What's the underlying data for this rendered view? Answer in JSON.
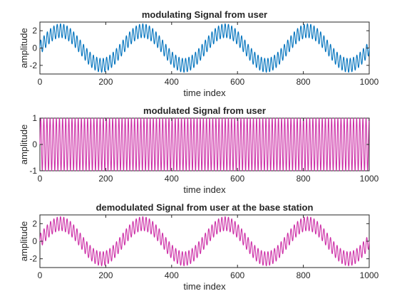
{
  "chart_data": [
    {
      "type": "line",
      "title": "modulating Signal from user",
      "xlabel": "time index",
      "ylabel": "amplitude",
      "xlim": [
        0,
        1000
      ],
      "ylim": [
        -3,
        3
      ],
      "xticks": [
        "0",
        "200",
        "400",
        "600",
        "800",
        "1000"
      ],
      "yticks": [
        "-2",
        "0",
        "2"
      ],
      "color": "#0072BD",
      "series": [
        {
          "description": "sum of slow sinusoid (amplitude 2, period 250) and fast ripple (amplitude 0.8, period 10)",
          "components": [
            {
              "amplitude": 2,
              "period": 250
            },
            {
              "amplitude": 0.8,
              "period": 10
            }
          ]
        }
      ],
      "grid": false
    },
    {
      "type": "line",
      "title": "modulated Signal from user",
      "xlabel": "time index",
      "ylabel": "amplitude",
      "xlim": [
        0,
        1000
      ],
      "ylim": [
        -1,
        1
      ],
      "xticks": [
        "0",
        "200",
        "400",
        "600",
        "800",
        "1000"
      ],
      "yticks": [
        "-1",
        "0",
        "1"
      ],
      "color": "#CC2EA6",
      "series": [
        {
          "description": "dense oscillation between -1 and 1 (about 105 cycles over 1000 samples)",
          "components": [
            {
              "amplitude": 1,
              "period": 9.5
            }
          ]
        }
      ],
      "grid": false
    },
    {
      "type": "line",
      "title": "demodulated Signal from user at the base station",
      "xlabel": "time index",
      "ylabel": "amplitude",
      "xlim": [
        0,
        1000
      ],
      "ylim": [
        -3,
        3
      ],
      "xticks": [
        "0",
        "200",
        "400",
        "600",
        "800",
        "1000"
      ],
      "yticks": [
        "-2",
        "0",
        "2"
      ],
      "color": "#CC2EA6",
      "series": [
        {
          "description": "recovered signal: slow sinusoid (amplitude 2, period 250) plus fast ripple (amplitude 0.8, period 10)",
          "components": [
            {
              "amplitude": 2,
              "period": 250
            },
            {
              "amplitude": 0.8,
              "period": 10
            }
          ]
        }
      ],
      "grid": false
    }
  ]
}
